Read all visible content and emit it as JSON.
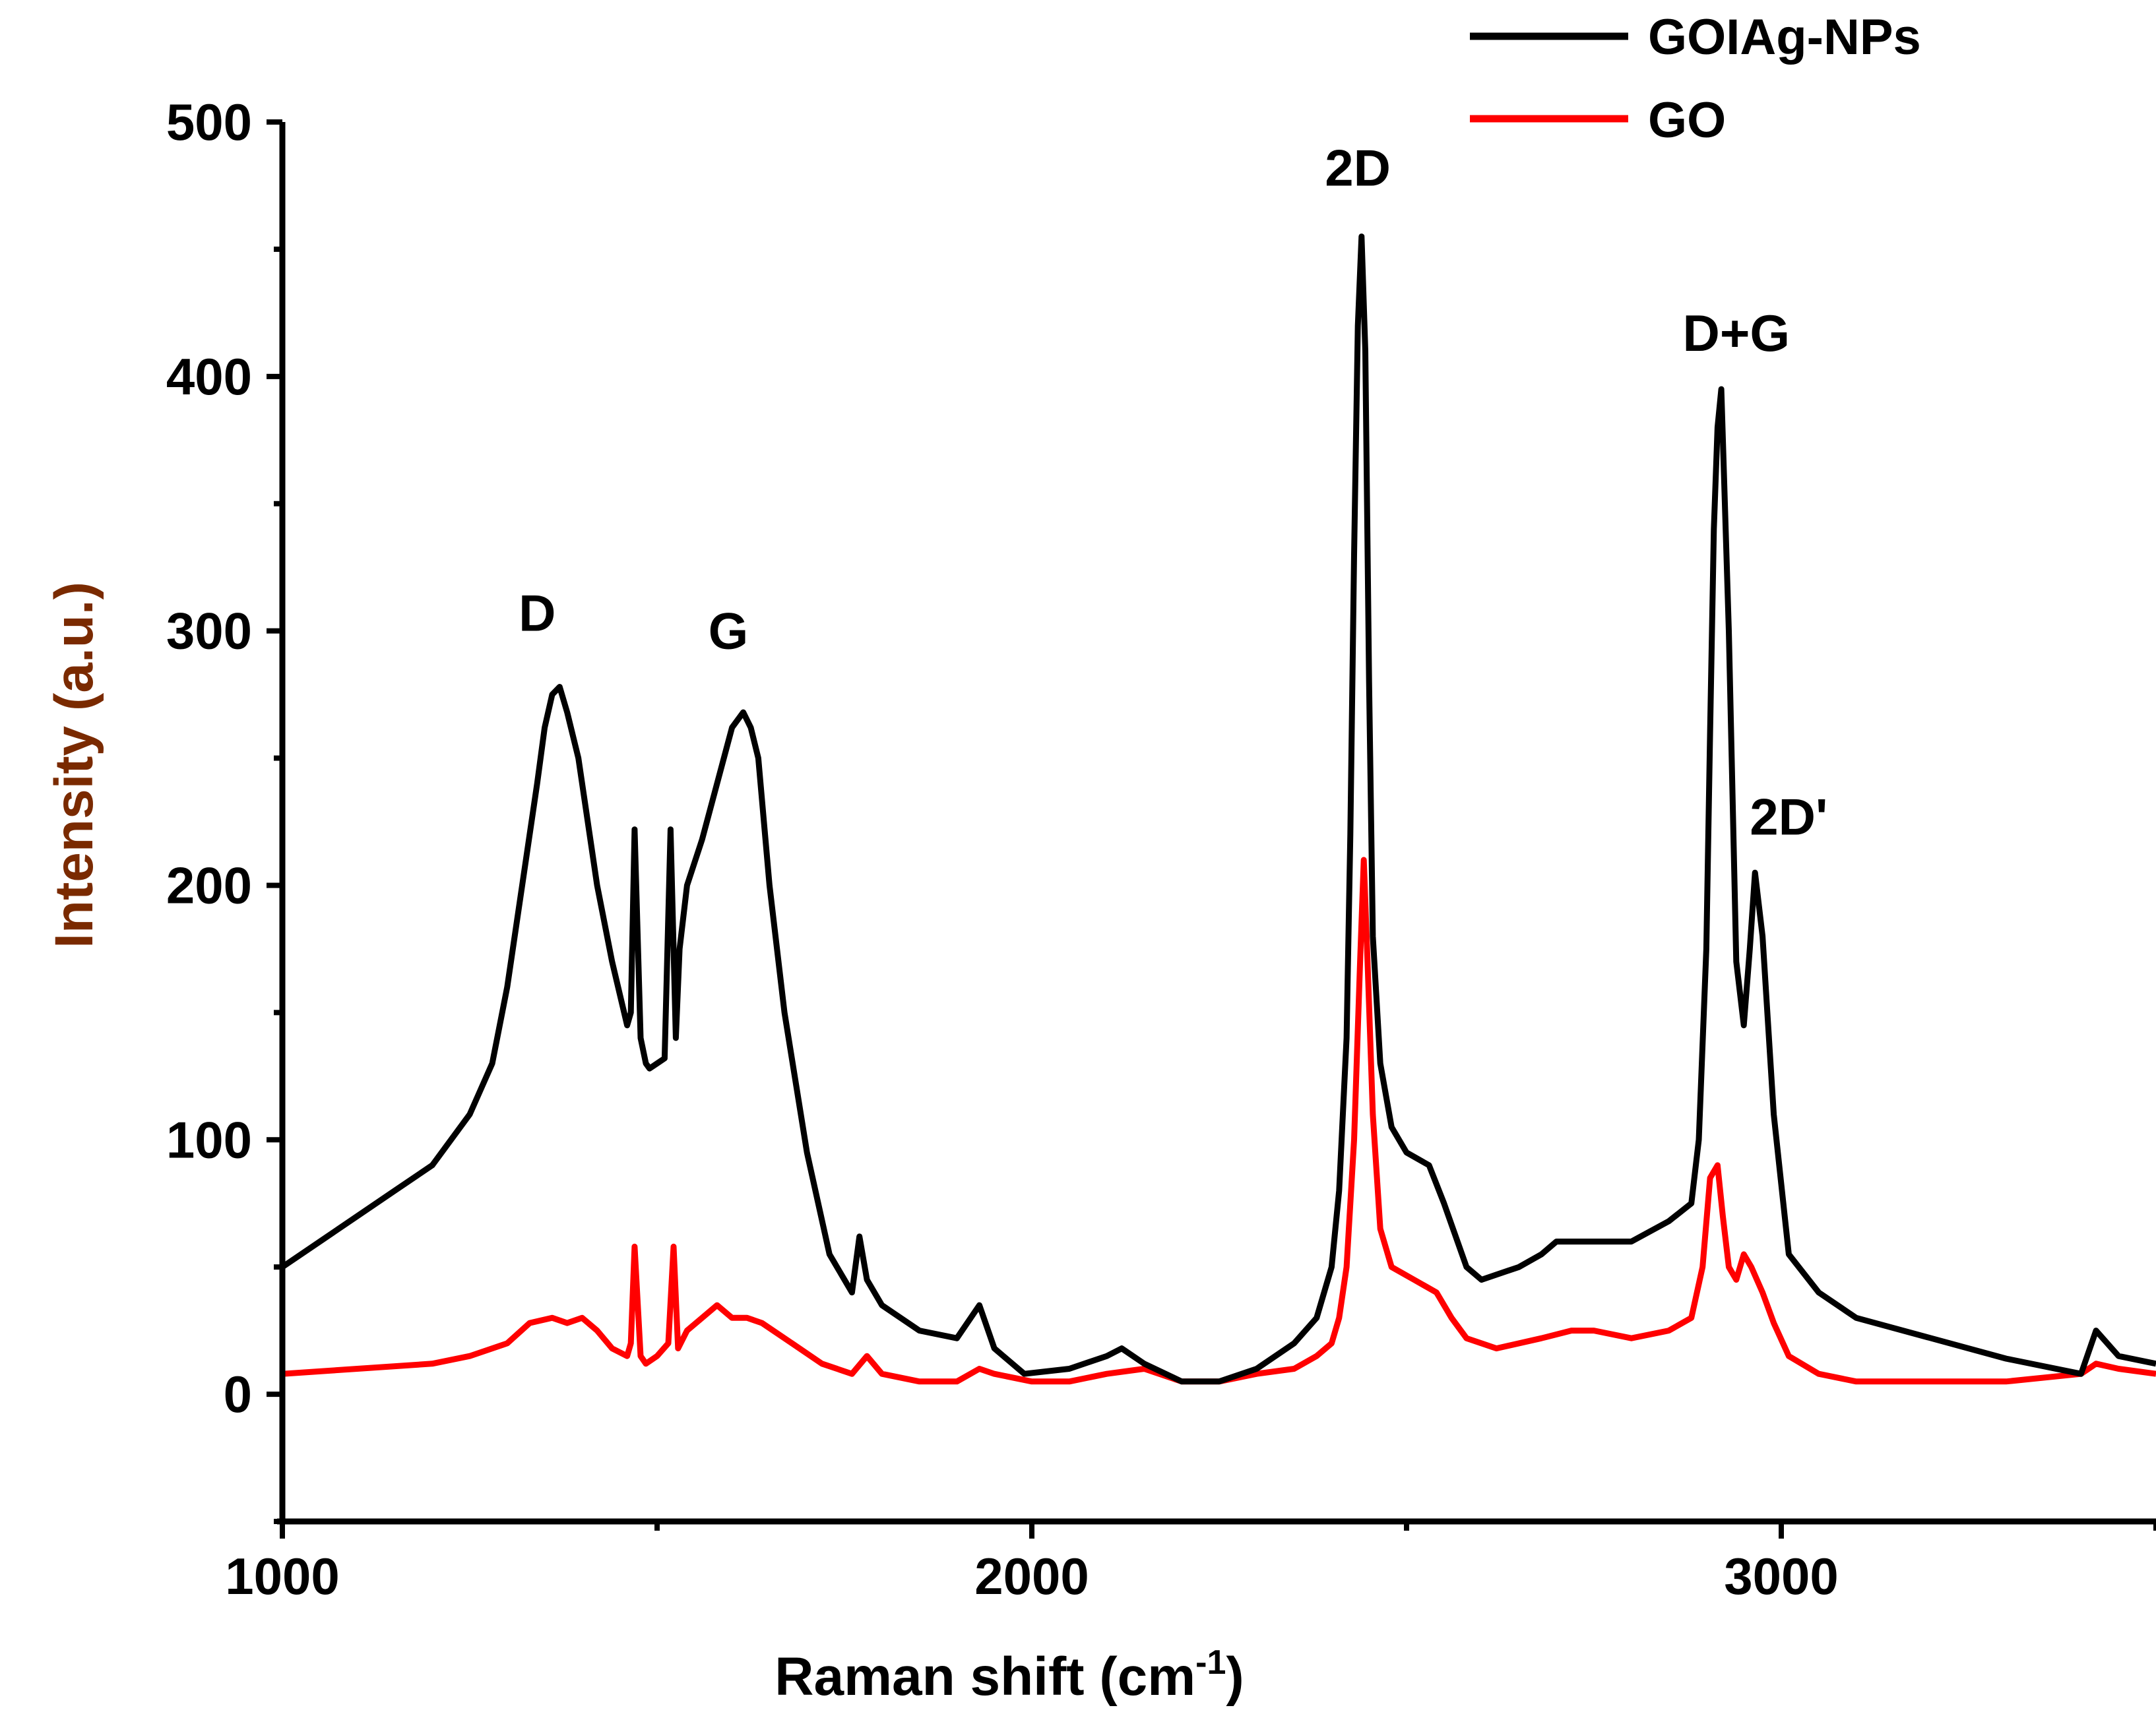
{
  "chart_data": {
    "type": "line",
    "title": "",
    "xlabel": "Raman shift (cm",
    "xlabel_superscript": "-1",
    "xlabel_suffix": ")",
    "ylabel": "Intensity (a.u.)",
    "xlim": [
      1000,
      3500
    ],
    "ylim": [
      -50,
      500
    ],
    "x_ticks": [
      1000,
      2000,
      3000
    ],
    "y_ticks": [
      0,
      100,
      200,
      300,
      400,
      500
    ],
    "grid": false,
    "legend_position": "top-right",
    "series": [
      {
        "name": "GOIAg-NPs",
        "color": "#000000",
        "x": [
          1000,
          1050,
          1100,
          1150,
          1200,
          1250,
          1280,
          1300,
          1320,
          1340,
          1350,
          1360,
          1370,
          1380,
          1395,
          1420,
          1440,
          1460,
          1465,
          1470,
          1478,
          1485,
          1490,
          1500,
          1510,
          1518,
          1525,
          1530,
          1540,
          1560,
          1580,
          1600,
          1615,
          1625,
          1635,
          1650,
          1670,
          1700,
          1730,
          1760,
          1770,
          1780,
          1800,
          1850,
          1900,
          1930,
          1950,
          1990,
          2050,
          2100,
          2120,
          2150,
          2200,
          2250,
          2300,
          2350,
          2380,
          2400,
          2410,
          2420,
          2425,
          2430,
          2435,
          2440,
          2445,
          2450,
          2455,
          2465,
          2480,
          2500,
          2530,
          2550,
          2580,
          2600,
          2650,
          2680,
          2700,
          2750,
          2800,
          2850,
          2880,
          2890,
          2900,
          2905,
          2910,
          2915,
          2920,
          2930,
          2940,
          2950,
          2958,
          2965,
          2975,
          2990,
          3010,
          3050,
          3100,
          3200,
          3300,
          3400,
          3420,
          3450,
          3500
        ],
        "y": [
          50,
          60,
          70,
          80,
          90,
          110,
          130,
          160,
          200,
          240,
          262,
          275,
          278,
          268,
          250,
          200,
          170,
          145,
          150,
          222,
          140,
          130,
          128,
          130,
          132,
          222,
          140,
          175,
          200,
          218,
          240,
          262,
          268,
          262,
          250,
          200,
          150,
          95,
          55,
          40,
          62,
          45,
          35,
          25,
          22,
          35,
          18,
          8,
          10,
          15,
          18,
          12,
          5,
          5,
          10,
          20,
          30,
          50,
          80,
          140,
          220,
          330,
          420,
          455,
          410,
          280,
          180,
          130,
          105,
          95,
          90,
          75,
          50,
          45,
          50,
          55,
          60,
          60,
          60,
          68,
          75,
          100,
          175,
          260,
          340,
          380,
          395,
          300,
          170,
          145,
          175,
          205,
          180,
          110,
          55,
          40,
          30,
          22,
          14,
          8,
          25,
          15,
          12
        ]
      },
      {
        "name": "GO",
        "color": "#ff0000",
        "x": [
          1000,
          1100,
          1200,
          1250,
          1300,
          1330,
          1360,
          1380,
          1400,
          1420,
          1440,
          1460,
          1465,
          1470,
          1478,
          1485,
          1500,
          1515,
          1522,
          1528,
          1540,
          1560,
          1580,
          1600,
          1620,
          1640,
          1680,
          1720,
          1760,
          1780,
          1800,
          1850,
          1900,
          1930,
          1950,
          2000,
          2050,
          2100,
          2150,
          2200,
          2250,
          2300,
          2350,
          2380,
          2400,
          2410,
          2420,
          2430,
          2438,
          2443,
          2448,
          2455,
          2465,
          2480,
          2510,
          2540,
          2560,
          2580,
          2620,
          2680,
          2720,
          2750,
          2800,
          2850,
          2880,
          2895,
          2905,
          2915,
          2922,
          2930,
          2940,
          2950,
          2960,
          2975,
          2990,
          3010,
          3050,
          3100,
          3200,
          3300,
          3400,
          3420,
          3450,
          3500
        ],
        "y": [
          8,
          10,
          12,
          15,
          20,
          28,
          30,
          28,
          30,
          25,
          18,
          15,
          20,
          58,
          15,
          12,
          15,
          20,
          58,
          18,
          25,
          30,
          35,
          30,
          30,
          28,
          20,
          12,
          8,
          15,
          8,
          5,
          5,
          10,
          8,
          5,
          5,
          8,
          10,
          5,
          5,
          8,
          10,
          15,
          20,
          30,
          50,
          100,
          170,
          210,
          170,
          110,
          65,
          50,
          45,
          40,
          30,
          22,
          18,
          22,
          25,
          25,
          22,
          25,
          30,
          50,
          85,
          90,
          70,
          50,
          45,
          55,
          50,
          40,
          28,
          15,
          8,
          5,
          5,
          5,
          8,
          12,
          10,
          8
        ]
      }
    ],
    "annotations": [
      {
        "text": "D",
        "x": 1340,
        "y": 300
      },
      {
        "text": "G",
        "x": 1595,
        "y": 293
      },
      {
        "text": "2D",
        "x": 2435,
        "y": 475
      },
      {
        "text": "D+G",
        "x": 2940,
        "y": 410
      },
      {
        "text": "2D'",
        "x": 3010,
        "y": 220
      }
    ]
  }
}
